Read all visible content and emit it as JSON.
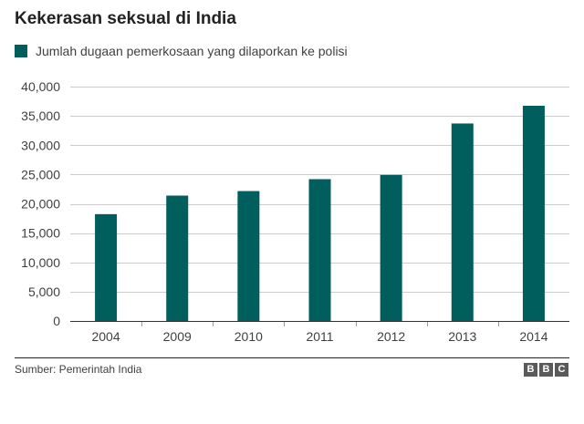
{
  "header": {
    "title": "Kekerasan seksual di India"
  },
  "legend": {
    "label": "Jumlah dugaan pemerkosaan yang dilaporkan ke polisi",
    "color": "#005e5c"
  },
  "footer": {
    "source": "Sumber: Pemerintah India",
    "logo_letters": [
      "B",
      "B",
      "C"
    ]
  },
  "chart_data": {
    "type": "bar",
    "title": "Kekerasan seksual di India",
    "xlabel": "",
    "ylabel": "",
    "categories": [
      "2004",
      "2009",
      "2010",
      "2011",
      "2012",
      "2013",
      "2014"
    ],
    "series": [
      {
        "name": "Jumlah dugaan pemerkosaan yang dilaporkan ke polisi",
        "values": [
          18233,
          21397,
          22172,
          24206,
          24923,
          33707,
          36735
        ],
        "color": "#005e5c"
      }
    ],
    "ylim": [
      0,
      40000
    ],
    "yticks": [
      0,
      5000,
      10000,
      15000,
      20000,
      25000,
      30000,
      35000,
      40000
    ],
    "ytick_labels": [
      "0",
      "5,000",
      "10,000",
      "15,000",
      "20,000",
      "25,000",
      "30,000",
      "35,000",
      "40,000"
    ],
    "grid": true,
    "legend_position": "top-left"
  }
}
